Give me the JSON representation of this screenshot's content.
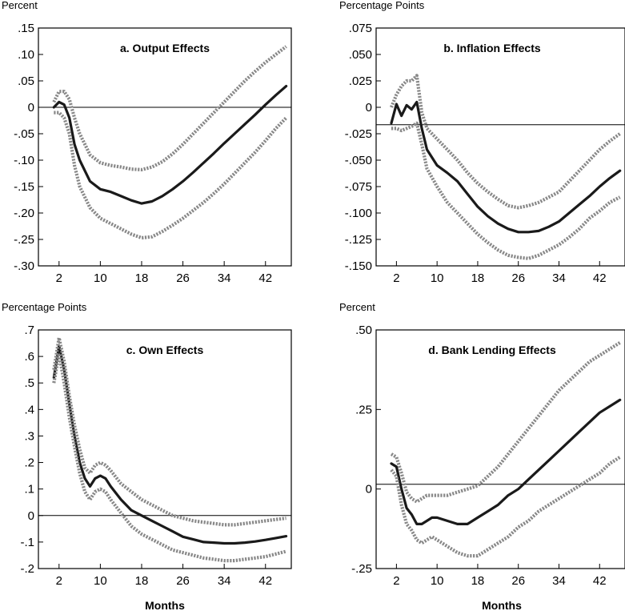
{
  "chart_data": [
    {
      "type": "line",
      "title": "a. Output Effects",
      "unit_label": "Percent",
      "xlabel": "",
      "x_ticks": [
        2,
        10,
        18,
        26,
        34,
        42
      ],
      "xlim": [
        -2,
        47
      ],
      "ylim": [
        -0.3,
        0.15
      ],
      "y_ticks": [
        {
          "v": 0.15,
          "label": ".15"
        },
        {
          "v": 0.1,
          "label": ".10"
        },
        {
          "v": 0.05,
          "label": ".05"
        },
        {
          "v": 0,
          "label": "0"
        },
        {
          "v": -0.05,
          "label": "-.05"
        },
        {
          "v": -0.1,
          "label": "-.10"
        },
        {
          "v": -0.15,
          "label": "-.15"
        },
        {
          "v": -0.2,
          "label": "-.20"
        },
        {
          "v": -0.25,
          "label": "-.25"
        },
        {
          "v": -0.3,
          "label": "-.30"
        }
      ],
      "zero_line": 0,
      "series": [
        {
          "role": "estimate",
          "x": [
            1,
            2,
            3,
            4,
            5,
            6,
            8,
            10,
            12,
            14,
            16,
            18,
            20,
            22,
            24,
            26,
            28,
            30,
            32,
            34,
            36,
            38,
            40,
            42,
            44,
            46
          ],
          "y": [
            0.0,
            0.01,
            0.005,
            -0.02,
            -0.07,
            -0.1,
            -0.14,
            -0.155,
            -0.16,
            -0.168,
            -0.176,
            -0.182,
            -0.178,
            -0.168,
            -0.155,
            -0.14,
            -0.123,
            -0.105,
            -0.087,
            -0.068,
            -0.05,
            -0.032,
            -0.014,
            0.005,
            0.023,
            0.04
          ]
        },
        {
          "role": "upper band",
          "x": [
            1,
            2,
            3,
            4,
            5,
            6,
            8,
            10,
            12,
            14,
            16,
            18,
            20,
            22,
            24,
            26,
            28,
            30,
            32,
            34,
            36,
            38,
            40,
            42,
            44,
            46
          ],
          "y": [
            0.01,
            0.03,
            0.03,
            0.015,
            -0.02,
            -0.05,
            -0.09,
            -0.105,
            -0.11,
            -0.113,
            -0.117,
            -0.118,
            -0.113,
            -0.103,
            -0.088,
            -0.07,
            -0.05,
            -0.03,
            -0.01,
            0.01,
            0.03,
            0.05,
            0.068,
            0.085,
            0.1,
            0.115
          ]
        },
        {
          "role": "lower band",
          "x": [
            1,
            2,
            3,
            4,
            5,
            6,
            8,
            10,
            12,
            14,
            16,
            18,
            20,
            22,
            24,
            26,
            28,
            30,
            32,
            34,
            36,
            38,
            40,
            42,
            44,
            46
          ],
          "y": [
            -0.01,
            -0.01,
            -0.02,
            -0.05,
            -0.11,
            -0.15,
            -0.19,
            -0.21,
            -0.22,
            -0.23,
            -0.24,
            -0.247,
            -0.245,
            -0.235,
            -0.223,
            -0.21,
            -0.195,
            -0.18,
            -0.163,
            -0.145,
            -0.125,
            -0.105,
            -0.085,
            -0.063,
            -0.04,
            -0.02
          ]
        }
      ]
    },
    {
      "type": "line",
      "title": "b. Inflation Effects",
      "unit_label": "Percentage Points",
      "xlabel": "",
      "x_ticks": [
        2,
        10,
        18,
        26,
        34,
        42
      ],
      "xlim": [
        -2,
        47
      ],
      "ylim": [
        -0.15,
        0.075
      ],
      "y_ticks": [
        {
          "v": 0.075,
          "label": ".075"
        },
        {
          "v": 0.05,
          "label": ".050"
        },
        {
          "v": 0.025,
          "label": ".025"
        },
        {
          "v": 0,
          "label": "0"
        },
        {
          "v": -0.025,
          "label": "-.025"
        },
        {
          "v": -0.05,
          "label": "-.050"
        },
        {
          "v": -0.075,
          "label": "-.075"
        },
        {
          "v": -0.1,
          "label": "-.100"
        },
        {
          "v": -0.125,
          "label": "-.125"
        },
        {
          "v": -0.15,
          "label": "-.150"
        }
      ],
      "zero_line": -0.0165,
      "series": [
        {
          "role": "estimate",
          "x": [
            1,
            2,
            3,
            4,
            5,
            6,
            7,
            8,
            10,
            12,
            14,
            16,
            18,
            20,
            22,
            24,
            26,
            28,
            30,
            32,
            34,
            36,
            38,
            40,
            42,
            44,
            46
          ],
          "y": [
            -0.015,
            0.003,
            -0.008,
            0.002,
            -0.002,
            0.005,
            -0.02,
            -0.04,
            -0.055,
            -0.062,
            -0.07,
            -0.082,
            -0.094,
            -0.103,
            -0.11,
            -0.115,
            -0.118,
            -0.118,
            -0.117,
            -0.113,
            -0.108,
            -0.1,
            -0.092,
            -0.084,
            -0.075,
            -0.067,
            -0.06
          ]
        },
        {
          "role": "upper band",
          "x": [
            1,
            2,
            3,
            4,
            5,
            6,
            7,
            8,
            10,
            12,
            14,
            16,
            18,
            20,
            22,
            24,
            26,
            28,
            30,
            32,
            34,
            36,
            38,
            40,
            42,
            44,
            46
          ],
          "y": [
            0.0,
            0.012,
            0.02,
            0.025,
            0.025,
            0.03,
            -0.005,
            -0.02,
            -0.03,
            -0.04,
            -0.05,
            -0.062,
            -0.072,
            -0.08,
            -0.087,
            -0.093,
            -0.095,
            -0.093,
            -0.09,
            -0.085,
            -0.08,
            -0.07,
            -0.06,
            -0.05,
            -0.04,
            -0.032,
            -0.025
          ]
        },
        {
          "role": "lower band",
          "x": [
            1,
            2,
            3,
            4,
            5,
            6,
            7,
            8,
            10,
            12,
            14,
            16,
            18,
            20,
            22,
            24,
            26,
            28,
            30,
            32,
            34,
            36,
            38,
            40,
            42,
            44,
            46
          ],
          "y": [
            -0.02,
            -0.02,
            -0.022,
            -0.02,
            -0.018,
            -0.015,
            -0.035,
            -0.058,
            -0.075,
            -0.09,
            -0.1,
            -0.11,
            -0.12,
            -0.128,
            -0.135,
            -0.14,
            -0.142,
            -0.143,
            -0.14,
            -0.135,
            -0.13,
            -0.123,
            -0.115,
            -0.105,
            -0.098,
            -0.09,
            -0.085
          ]
        }
      ]
    },
    {
      "type": "line",
      "title": "c. Own Effects",
      "unit_label": "Percentage Points",
      "xlabel": "Months",
      "x_ticks": [
        2,
        10,
        18,
        26,
        34,
        42
      ],
      "xlim": [
        -2,
        47
      ],
      "ylim": [
        -0.2,
        0.7
      ],
      "y_ticks": [
        {
          "v": 0.7,
          "label": ".7"
        },
        {
          "v": 0.6,
          "label": ".6"
        },
        {
          "v": 0.5,
          "label": ".5"
        },
        {
          "v": 0.4,
          "label": ".4"
        },
        {
          "v": 0.3,
          "label": ".3"
        },
        {
          "v": 0.2,
          "label": ".2"
        },
        {
          "v": 0.1,
          "label": ".1"
        },
        {
          "v": 0,
          "label": "0"
        },
        {
          "v": -0.1,
          "label": "-.1"
        },
        {
          "v": -0.2,
          "label": "-.2"
        }
      ],
      "zero_line": 0,
      "series": [
        {
          "role": "estimate",
          "x": [
            1,
            2,
            3,
            4,
            5,
            6,
            7,
            8,
            9,
            10,
            11,
            12,
            14,
            16,
            18,
            20,
            22,
            24,
            26,
            28,
            30,
            32,
            34,
            36,
            38,
            40,
            42,
            44,
            46
          ],
          "y": [
            0.52,
            0.64,
            0.55,
            0.42,
            0.3,
            0.2,
            0.14,
            0.11,
            0.14,
            0.15,
            0.14,
            0.11,
            0.06,
            0.02,
            0.0,
            -0.02,
            -0.04,
            -0.06,
            -0.08,
            -0.09,
            -0.1,
            -0.102,
            -0.105,
            -0.105,
            -0.102,
            -0.098,
            -0.092,
            -0.085,
            -0.078
          ]
        },
        {
          "role": "upper band",
          "x": [
            1,
            2,
            3,
            4,
            5,
            6,
            7,
            8,
            9,
            10,
            11,
            12,
            14,
            16,
            18,
            20,
            22,
            24,
            26,
            28,
            30,
            32,
            34,
            36,
            38,
            40,
            42,
            44,
            46
          ],
          "y": [
            0.55,
            0.67,
            0.58,
            0.45,
            0.34,
            0.25,
            0.18,
            0.16,
            0.19,
            0.2,
            0.19,
            0.17,
            0.12,
            0.09,
            0.06,
            0.04,
            0.02,
            0.0,
            -0.01,
            -0.02,
            -0.025,
            -0.03,
            -0.035,
            -0.035,
            -0.03,
            -0.025,
            -0.02,
            -0.015,
            -0.01
          ]
        },
        {
          "role": "lower band",
          "x": [
            1,
            2,
            3,
            4,
            5,
            6,
            7,
            8,
            9,
            10,
            11,
            12,
            14,
            16,
            18,
            20,
            22,
            24,
            26,
            28,
            30,
            32,
            34,
            36,
            38,
            40,
            42,
            44,
            46
          ],
          "y": [
            0.5,
            0.61,
            0.5,
            0.37,
            0.26,
            0.16,
            0.09,
            0.06,
            0.09,
            0.1,
            0.09,
            0.06,
            0.01,
            -0.04,
            -0.07,
            -0.09,
            -0.11,
            -0.13,
            -0.14,
            -0.15,
            -0.16,
            -0.165,
            -0.17,
            -0.17,
            -0.165,
            -0.16,
            -0.155,
            -0.145,
            -0.135
          ]
        }
      ]
    },
    {
      "type": "line",
      "title": "d. Bank Lending Effects",
      "unit_label": "Percent",
      "xlabel": "Months",
      "x_ticks": [
        2,
        10,
        18,
        26,
        34,
        42
      ],
      "xlim": [
        -2,
        47
      ],
      "ylim": [
        -0.25,
        0.5
      ],
      "y_ticks": [
        {
          "v": 0.5,
          "label": ".50"
        },
        {
          "v": 0.25,
          "label": ".25"
        },
        {
          "v": 0,
          "label": "0"
        },
        {
          "v": -0.25,
          "label": "-.25"
        }
      ],
      "zero_line": 0.015,
      "series": [
        {
          "role": "estimate",
          "x": [
            1,
            2,
            3,
            4,
            5,
            6,
            7,
            8,
            9,
            10,
            12,
            14,
            16,
            18,
            20,
            22,
            24,
            26,
            28,
            30,
            32,
            34,
            36,
            38,
            40,
            42,
            44,
            46
          ],
          "y": [
            0.08,
            0.07,
            0.0,
            -0.06,
            -0.08,
            -0.11,
            -0.11,
            -0.1,
            -0.09,
            -0.09,
            -0.1,
            -0.11,
            -0.11,
            -0.09,
            -0.07,
            -0.05,
            -0.02,
            0.0,
            0.03,
            0.06,
            0.09,
            0.12,
            0.15,
            0.18,
            0.21,
            0.24,
            0.26,
            0.28
          ]
        },
        {
          "role": "upper band",
          "x": [
            1,
            2,
            3,
            4,
            5,
            6,
            7,
            8,
            9,
            10,
            12,
            14,
            16,
            18,
            20,
            22,
            24,
            26,
            28,
            30,
            32,
            34,
            36,
            38,
            40,
            42,
            44,
            46
          ],
          "y": [
            0.11,
            0.1,
            0.05,
            -0.01,
            -0.03,
            -0.04,
            -0.03,
            -0.02,
            -0.02,
            -0.02,
            -0.02,
            -0.01,
            0.0,
            0.01,
            0.04,
            0.07,
            0.11,
            0.15,
            0.19,
            0.23,
            0.27,
            0.31,
            0.34,
            0.37,
            0.4,
            0.42,
            0.44,
            0.46
          ]
        },
        {
          "role": "lower band",
          "x": [
            1,
            2,
            3,
            4,
            5,
            6,
            7,
            8,
            9,
            10,
            12,
            14,
            16,
            18,
            20,
            22,
            24,
            26,
            28,
            30,
            32,
            34,
            36,
            38,
            40,
            42,
            44,
            46
          ],
          "y": [
            0.06,
            0.04,
            -0.05,
            -0.11,
            -0.13,
            -0.16,
            -0.17,
            -0.16,
            -0.15,
            -0.16,
            -0.18,
            -0.2,
            -0.21,
            -0.21,
            -0.19,
            -0.17,
            -0.15,
            -0.12,
            -0.1,
            -0.07,
            -0.05,
            -0.03,
            -0.01,
            0.01,
            0.03,
            0.05,
            0.08,
            0.1
          ]
        }
      ]
    }
  ]
}
